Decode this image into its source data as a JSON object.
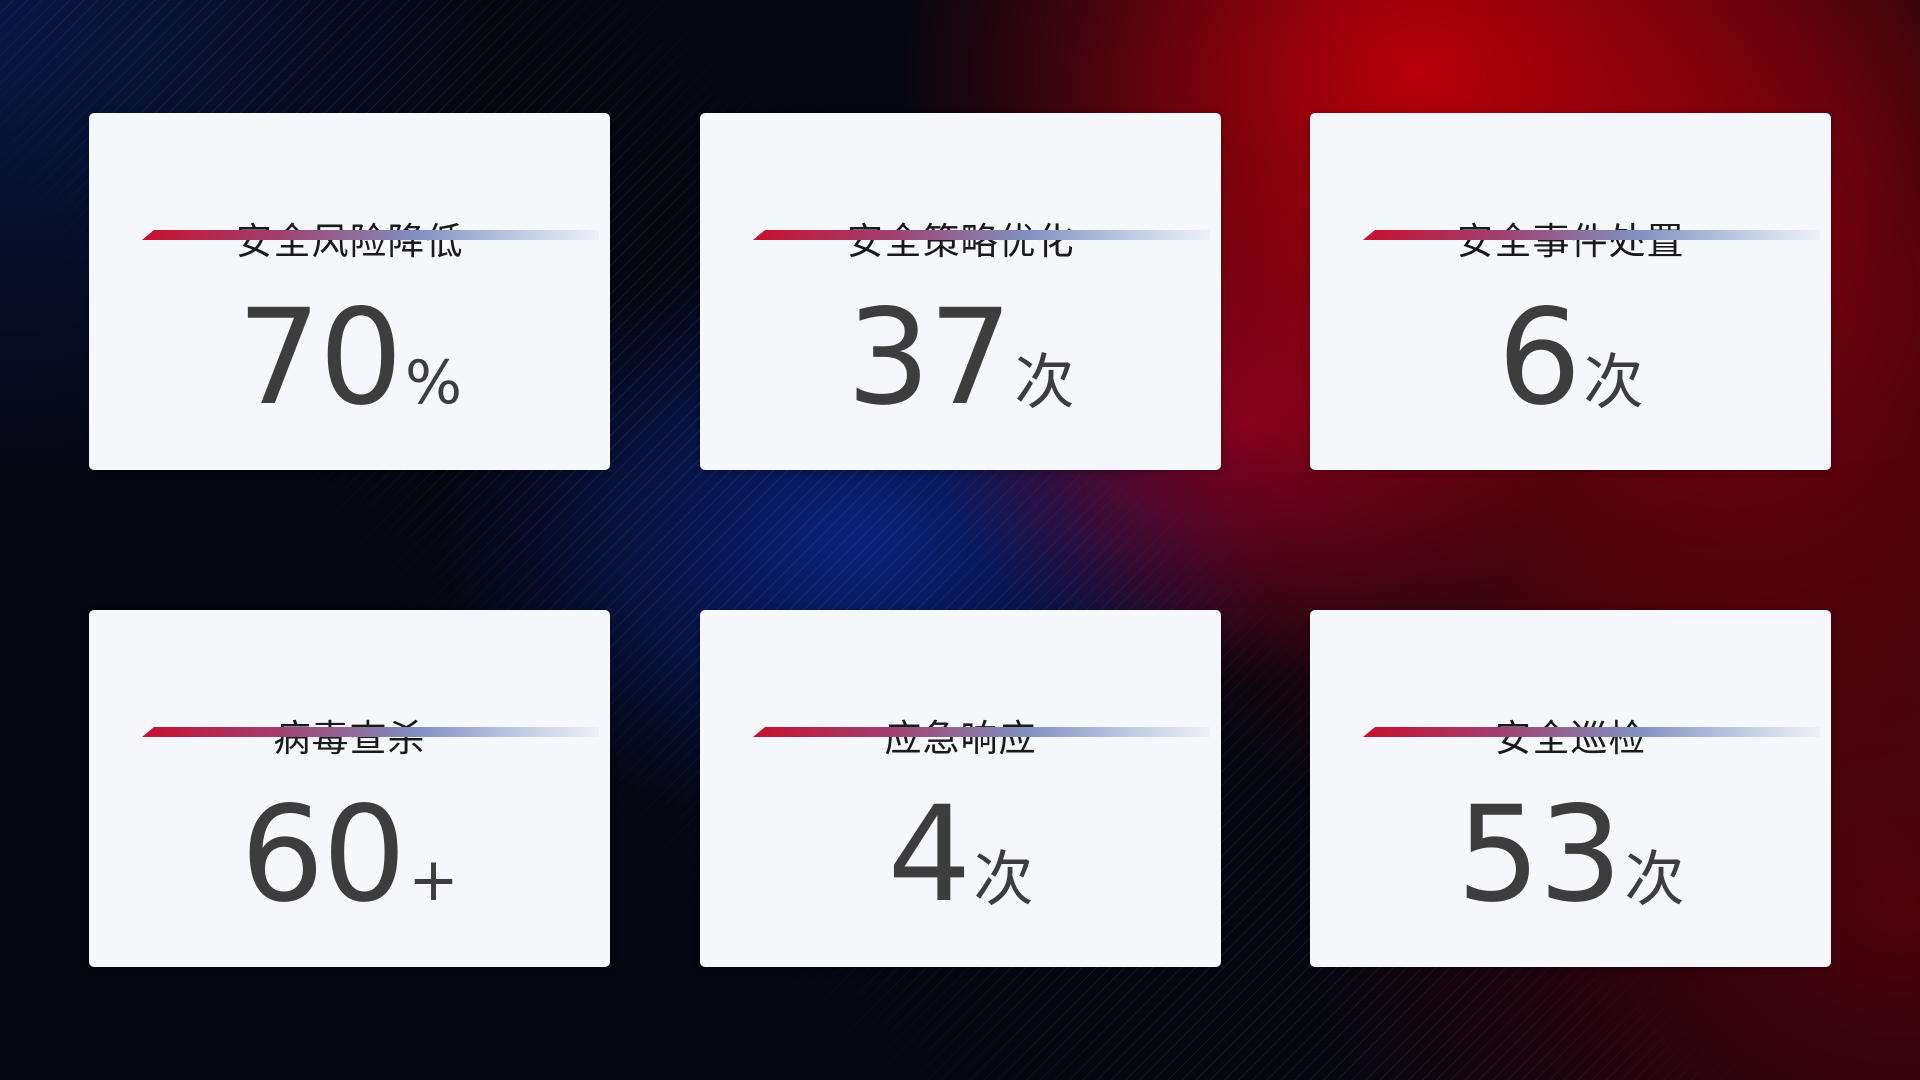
{
  "cards": [
    {
      "title": "安全风险降低",
      "value": "70",
      "unit": "%"
    },
    {
      "title": "安全策略优化",
      "value": "37",
      "unit": "次"
    },
    {
      "title": "安全事件处置",
      "value": "6",
      "unit": "次"
    },
    {
      "title": "病毒查杀",
      "value": "60",
      "unit": "+"
    },
    {
      "title": "应急响应",
      "value": "4",
      "unit": "次"
    },
    {
      "title": "安全巡检",
      "value": "53",
      "unit": "次"
    }
  ]
}
